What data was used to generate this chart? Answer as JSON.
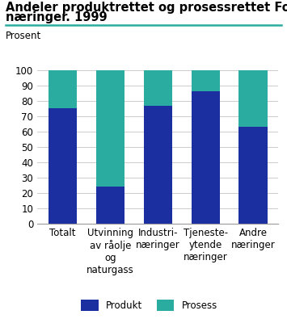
{
  "title_line1": "Andeler produktrettet og prosessrettet FoU i utvalgte",
  "title_line2": "næringer. 1999",
  "ylabel": "Prosent",
  "categories": [
    "Totalt",
    "Utvinning\nav råolje\nog\nnaturgass",
    "Industri-\nnæringer",
    "Tjeneste-\nytende\nnæringer",
    "Andre\nnæringer"
  ],
  "produkt": [
    75,
    24,
    77,
    86,
    63
  ],
  "prosess": [
    25,
    76,
    23,
    14,
    37
  ],
  "color_produkt": "#1b2fa0",
  "color_prosess": "#2aada0",
  "ylim": [
    0,
    100
  ],
  "yticks": [
    0,
    10,
    20,
    30,
    40,
    50,
    60,
    70,
    80,
    90,
    100
  ],
  "legend_produkt": "Produkt",
  "legend_prosess": "Prosess",
  "title_fontsize": 10.5,
  "tick_fontsize": 8.5,
  "ylabel_fontsize": 8.5,
  "title_line_color": "#2aada0",
  "bg_color": "#ffffff",
  "bar_width": 0.6
}
